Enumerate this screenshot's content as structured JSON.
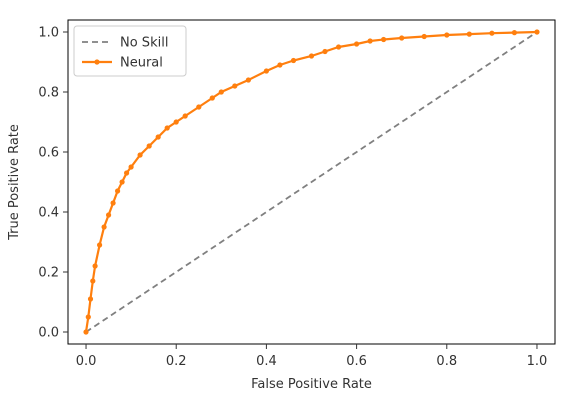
{
  "chart_data": {
    "type": "line",
    "title": "",
    "xlabel": "False Positive Rate",
    "ylabel": "True Positive Rate",
    "xlim": [
      -0.04,
      1.04
    ],
    "ylim": [
      -0.04,
      1.04
    ],
    "xticks": [
      0.0,
      0.2,
      0.4,
      0.6,
      0.8,
      1.0
    ],
    "xtick_labels": [
      "0.0",
      "0.2",
      "0.4",
      "0.6",
      "0.8",
      "1.0"
    ],
    "yticks": [
      0.0,
      0.2,
      0.4,
      0.6,
      0.8,
      1.0
    ],
    "ytick_labels": [
      "0.0",
      "0.2",
      "0.4",
      "0.6",
      "0.8",
      "1.0"
    ],
    "grid": false,
    "legend_position": "upper-left",
    "series": [
      {
        "name": "No Skill",
        "style": "dashed",
        "color": "#808080",
        "x": [
          0.0,
          1.0
        ],
        "y": [
          0.0,
          1.0
        ]
      },
      {
        "name": "Neural",
        "style": "line-with-markers",
        "color": "#ff7f0e",
        "x": [
          0.0,
          0.005,
          0.01,
          0.015,
          0.02,
          0.03,
          0.04,
          0.05,
          0.06,
          0.07,
          0.08,
          0.09,
          0.1,
          0.12,
          0.14,
          0.16,
          0.18,
          0.2,
          0.22,
          0.25,
          0.28,
          0.3,
          0.33,
          0.36,
          0.4,
          0.43,
          0.46,
          0.5,
          0.53,
          0.56,
          0.6,
          0.63,
          0.66,
          0.7,
          0.75,
          0.8,
          0.85,
          0.9,
          0.95,
          1.0
        ],
        "y": [
          0.0,
          0.05,
          0.11,
          0.17,
          0.22,
          0.29,
          0.35,
          0.39,
          0.43,
          0.47,
          0.5,
          0.53,
          0.55,
          0.59,
          0.62,
          0.65,
          0.68,
          0.7,
          0.72,
          0.75,
          0.78,
          0.8,
          0.82,
          0.84,
          0.87,
          0.89,
          0.905,
          0.92,
          0.935,
          0.95,
          0.96,
          0.97,
          0.975,
          0.98,
          0.985,
          0.99,
          0.993,
          0.996,
          0.998,
          1.0
        ]
      }
    ]
  }
}
